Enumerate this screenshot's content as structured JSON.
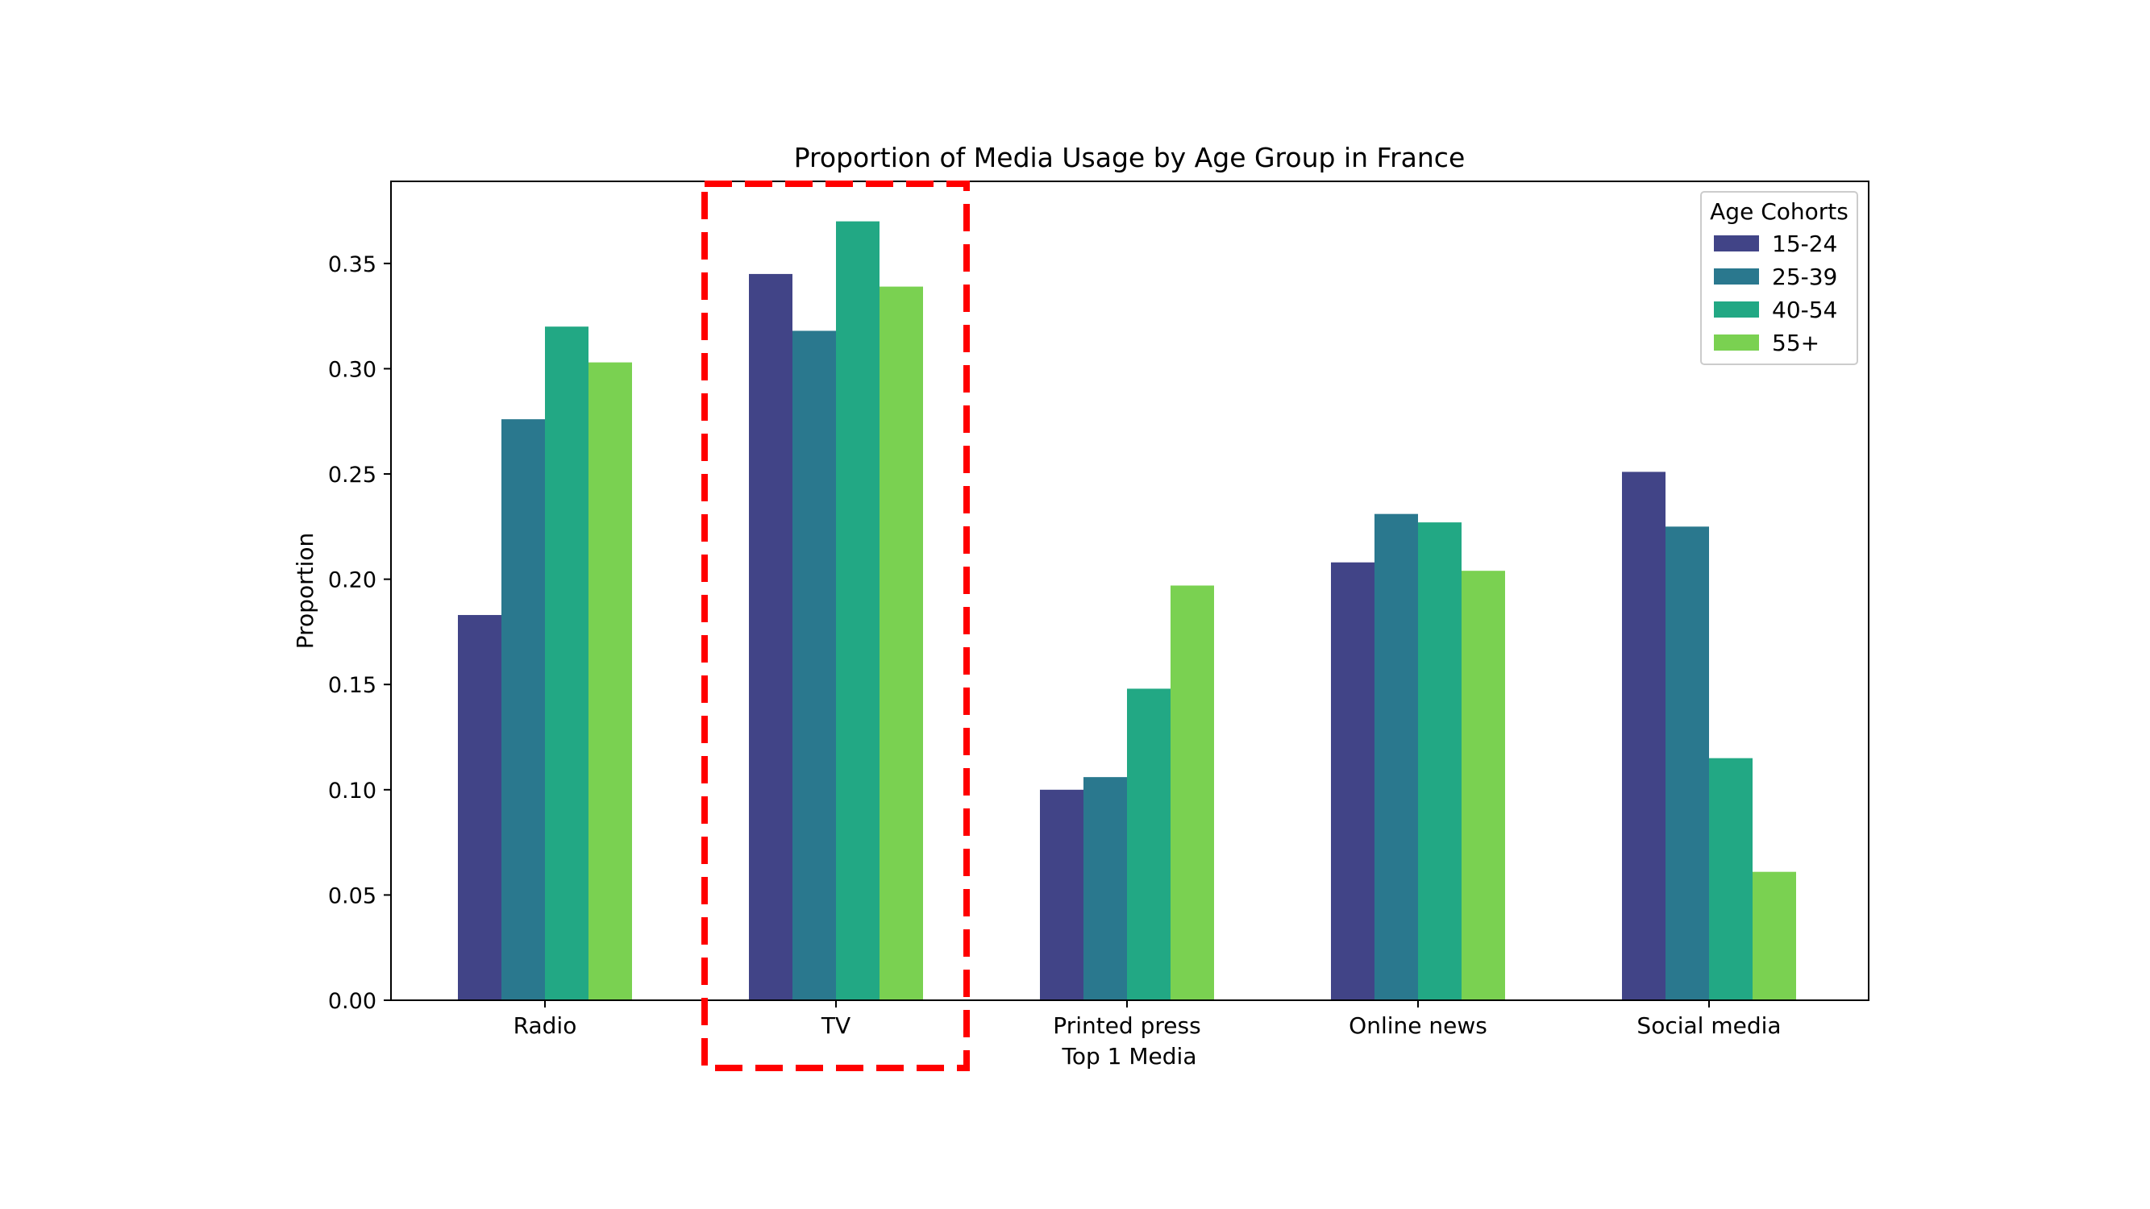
{
  "chart_data": {
    "type": "bar",
    "title": "Proportion of Media Usage by Age Group in France",
    "xlabel": "Top 1 Media",
    "ylabel": "Proportion",
    "categories": [
      "Radio",
      "TV",
      "Printed press",
      "Online news",
      "Social media"
    ],
    "series": [
      {
        "name": "15-24",
        "color": "#414487",
        "values": [
          0.183,
          0.345,
          0.1,
          0.208,
          0.251
        ]
      },
      {
        "name": "25-39",
        "color": "#2a788e",
        "values": [
          0.276,
          0.318,
          0.106,
          0.231,
          0.225
        ]
      },
      {
        "name": "40-54",
        "color": "#22a884",
        "values": [
          0.32,
          0.37,
          0.148,
          0.227,
          0.115
        ]
      },
      {
        "name": "55+",
        "color": "#7ad151",
        "values": [
          0.303,
          0.339,
          0.197,
          0.204,
          0.061
        ]
      }
    ],
    "ylim": [
      0,
      0.389
    ],
    "yticks": [
      "0.00",
      "0.05",
      "0.10",
      "0.15",
      "0.20",
      "0.25",
      "0.30",
      "0.35"
    ],
    "legend": {
      "title": "Age Cohorts",
      "placement": "top-right"
    },
    "grid": false,
    "annotation": {
      "type": "dashed-rectangle",
      "color": "#ff0000",
      "highlights": "TV"
    }
  }
}
